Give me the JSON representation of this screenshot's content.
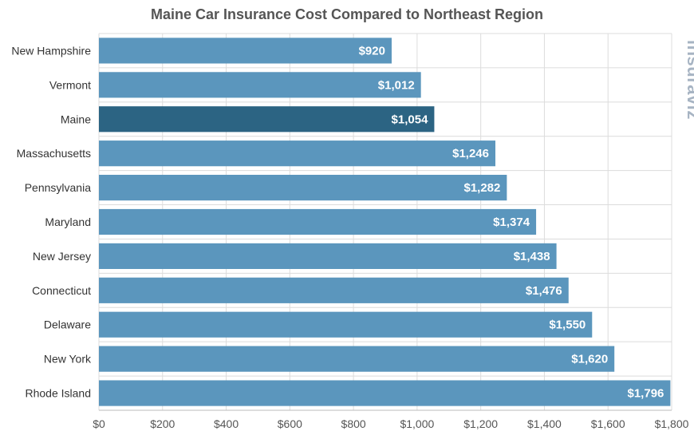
{
  "watermark": "insuraviz",
  "colors": {
    "bar": "#5b96bd",
    "highlight": "#2c6483",
    "grid": "#dcdcdc",
    "watermark": "#a7b4c3"
  },
  "chart_data": {
    "type": "bar",
    "orientation": "horizontal",
    "title": "Maine Car Insurance Cost Compared to Northeast Region",
    "xlabel": "",
    "ylabel": "",
    "categories": [
      "New Hampshire",
      "Vermont",
      "Maine",
      "Massachusetts",
      "Pennsylvania",
      "Maryland",
      "New Jersey",
      "Connecticut",
      "Delaware",
      "New York",
      "Rhode Island"
    ],
    "values": [
      920,
      1012,
      1054,
      1246,
      1282,
      1374,
      1438,
      1476,
      1550,
      1620,
      1796
    ],
    "value_labels": [
      "$920",
      "$1,012",
      "$1,054",
      "$1,246",
      "$1,282",
      "$1,374",
      "$1,438",
      "$1,476",
      "$1,550",
      "$1,620",
      "$1,796"
    ],
    "highlight": "Maine",
    "xlim": [
      0,
      1800
    ],
    "x_ticks": [
      0,
      200,
      400,
      600,
      800,
      1000,
      1200,
      1400,
      1600,
      1800
    ],
    "x_tick_labels": [
      "$0",
      "$200",
      "$400",
      "$600",
      "$800",
      "$1,000",
      "$1,200",
      "$1,400",
      "$1,600",
      "$1,800"
    ],
    "grid": true,
    "legend": false
  }
}
